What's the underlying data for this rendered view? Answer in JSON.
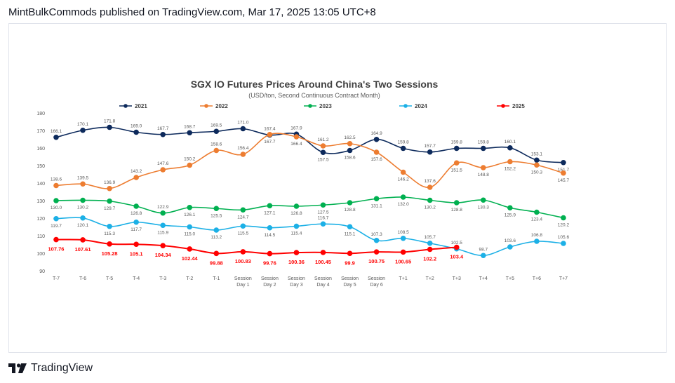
{
  "header": {
    "text": "MintBulkCommods published on TradingView.com, Mar 17, 2025 13:05 UTC+8"
  },
  "footer": {
    "brand": "TradingView"
  },
  "chart_data": {
    "type": "line",
    "title": "SGX IO Futures Prices Around China's Two Sessions",
    "subtitle": "(USD/ton, Second Continuous Contract Month)",
    "ylim": [
      90,
      180
    ],
    "yticks": [
      90,
      100,
      110,
      120,
      130,
      140,
      150,
      160,
      170,
      180
    ],
    "grid": false,
    "legend_position": "top",
    "categories": [
      "T-7",
      "T-6",
      "T-5",
      "T-4",
      "T-3",
      "T-2",
      "T-1",
      "Session Day 1",
      "Session Day 2",
      "Session Day 3",
      "Session Day 4",
      "Session Day 5",
      "Session Day 6",
      "T+1",
      "T+2",
      "T+3",
      "T+4",
      "T+5",
      "T+6",
      "T+7"
    ],
    "series": [
      {
        "name": "2021",
        "color": "#0d2a5c",
        "values": [
          166.1,
          170.1,
          171.8,
          169.0,
          167.7,
          168.7,
          169.5,
          171.0,
          167.4,
          167.9,
          157.5,
          158.6,
          164.9,
          159.8,
          157.7,
          159.8,
          159.8,
          160.1,
          153.1,
          151.7
        ]
      },
      {
        "name": "2022",
        "color": "#ed7d31",
        "values": [
          138.6,
          139.5,
          136.9,
          143.2,
          147.6,
          150.2,
          158.6,
          156.4,
          167.7,
          166.4,
          161.2,
          162.5,
          157.6,
          146.2,
          137.6,
          151.5,
          148.8,
          152.2,
          150.3,
          145.7
        ]
      },
      {
        "name": "2023",
        "color": "#00b050",
        "values": [
          130.0,
          130.2,
          129.7,
          126.8,
          122.9,
          126.1,
          125.5,
          124.7,
          127.1,
          126.8,
          127.5,
          128.8,
          131.1,
          132.0,
          130.2,
          128.8,
          130.3,
          125.9,
          123.4,
          120.2
        ]
      },
      {
        "name": "2024",
        "color": "#1cb0e6",
        "values": [
          119.7,
          120.1,
          115.3,
          117.7,
          115.9,
          115.0,
          113.2,
          115.5,
          114.5,
          115.4,
          116.7,
          115.1,
          107.3,
          108.5,
          105.7,
          102.5,
          98.7,
          103.6,
          106.8,
          105.6
        ]
      },
      {
        "name": "2025",
        "color": "#ff0000",
        "values": [
          107.76,
          107.61,
          105.28,
          105.1,
          104.34,
          102.44,
          99.88,
          100.83,
          99.76,
          100.36,
          100.45,
          99.9,
          100.75,
          100.65,
          102.2,
          103.4,
          null,
          null,
          null,
          null
        ]
      }
    ],
    "labels": {
      "2021": [
        "166.1",
        "170.1",
        "171.8",
        "169.0",
        "167.7",
        "168.7",
        "169.5",
        "171.0",
        "167.4",
        "167.9",
        "157.5",
        "158.6",
        "164.9",
        "159.8",
        "157.7",
        "159.8",
        "159.8",
        "160.1",
        "153.1",
        "151.7"
      ],
      "2022": [
        "138.6",
        "139.5",
        "136.9",
        "143.2",
        "147.6",
        "150.2",
        "158.6",
        "156.4",
        "167.7",
        "166.4",
        "161.2",
        "162.5",
        "157.6",
        "146.2",
        "137.6",
        "151.5",
        "148.8",
        "152.2",
        "150.3",
        "145.7"
      ],
      "2023": [
        "130.0",
        "130.2",
        "129.7",
        "126.8",
        "122.9",
        "126.1",
        "125.5",
        "124.7",
        "127.1",
        "126.8",
        "127.5",
        "128.8",
        "131.1",
        "132.0",
        "130.2",
        "128.8",
        "130.3",
        "125.9",
        "123.4",
        "120.2"
      ],
      "2024": [
        "119.7",
        "120.1",
        "115.3",
        "117.7",
        "115.9",
        "115.0",
        "113.2",
        "115.5",
        "114.5",
        "115.4",
        "116.7",
        "115.1",
        "107.3",
        "108.5",
        "105.7",
        "102.5",
        "98.7",
        "103.6",
        "106.8",
        "105.6"
      ],
      "2025": [
        "107.76",
        "107.61",
        "105.28",
        "105.1",
        "104.34",
        "102.44",
        "99.88",
        "100.83",
        "99.76",
        "100.36",
        "100.45",
        "99.9",
        "100.75",
        "100.65",
        "102.2",
        "103.4"
      ]
    }
  }
}
